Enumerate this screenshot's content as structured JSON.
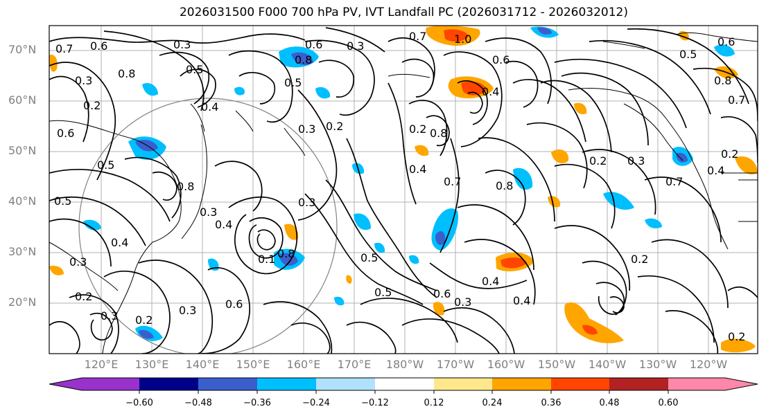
{
  "title": "2026031500 F000 700 hPa PV, IVT Landfall PC (2026031712 - 2026032012)",
  "lat_labels": [
    "70°N",
    "60°N",
    "50°N",
    "40°N",
    "30°N",
    "20°N"
  ],
  "lon_labels": [
    "120°E",
    "130°E",
    "140°E",
    "150°E",
    "160°E",
    "170°E",
    "180°W",
    "170°W",
    "160°W",
    "150°W",
    "140°W",
    "130°W",
    "120°W"
  ],
  "colorbar": {
    "ticks": [
      "−0.60",
      "−0.48",
      "−0.36",
      "−0.24",
      "−0.12",
      "0.12",
      "0.24",
      "0.36",
      "0.48",
      "0.60"
    ],
    "colors": [
      "#9932cc",
      "#00008b",
      "#3a5fcd",
      "#00bfff",
      "#b0e2ff",
      "#ffffff",
      "#ffe88c",
      "#ffa500",
      "#ff4500",
      "#b22222",
      "#ff88aa"
    ]
  },
  "contour_labels": [
    "0.7",
    "0.6",
    "0.3",
    "0.8",
    "0.5",
    "0.2",
    "0.4",
    "0.3",
    "0.6",
    "0.3",
    "0.2",
    "1.0",
    "0.8",
    "0.7",
    "0.4",
    "0.5",
    "0.3",
    "0.2",
    "0.6",
    "0.8",
    "0.5",
    "0.4",
    "0.3",
    "0.2",
    "0.2",
    "0.3",
    "0.8",
    "0.7",
    "0.4",
    "0.3",
    "0.8",
    "0.5",
    "0.3",
    "0.4",
    "0.2",
    "0.2",
    "0.3",
    "0.3",
    "0.8",
    "0.2",
    "0.5",
    "0.4",
    "0.6",
    "0.5",
    "0.1",
    "0.4",
    "0.6",
    "0.7",
    "0.4",
    "0.3",
    "0.6",
    "0.5",
    "0.8",
    "0.6",
    "0.7",
    "0.2"
  ],
  "legend_colors": {
    "negative_strong": "#3a5fcd",
    "negative": "#00bfff",
    "positive": "#ffa500",
    "positive_strong": "#ff4500"
  }
}
